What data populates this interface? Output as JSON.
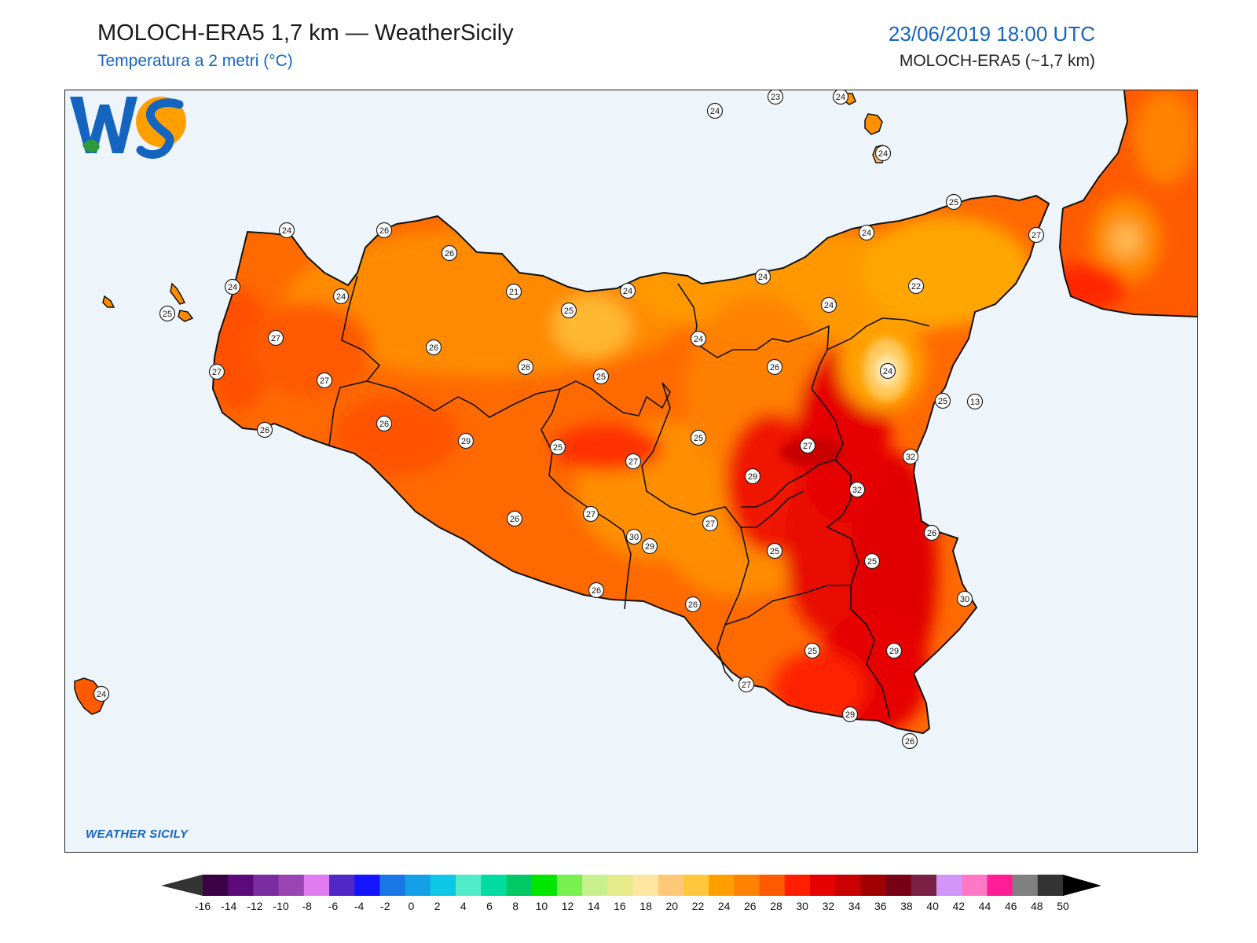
{
  "header": {
    "title": "MOLOCH-ERA5 1,7 km — WeatherSicily",
    "subtitle": "Temperatura a 2 metri (°C)",
    "datetime": "23/06/2019 18:00 UTC",
    "model": "MOLOCH-ERA5 (~1,7 km)"
  },
  "logo": {
    "text": "WS",
    "caption": "WEATHER SICILY"
  },
  "colors": {
    "sea": "#eef5fa",
    "accent": "#1565c0",
    "land_base": "#ff6a00"
  },
  "station_labels": [
    "24",
    "23",
    "24",
    "24",
    "25",
    "24",
    "24",
    "26",
    "26",
    "24",
    "24",
    "25",
    "21",
    "24",
    "25",
    "24",
    "22",
    "27",
    "24",
    "27",
    "26",
    "27",
    "24",
    "26",
    "26",
    "25",
    "24",
    "13",
    "27",
    "25",
    "25",
    "26",
    "29",
    "26",
    "25",
    "27",
    "27",
    "32",
    "32",
    "29",
    "30",
    "26",
    "27",
    "25",
    "27",
    "26",
    "25",
    "29",
    "26",
    "26",
    "30",
    "29",
    "25",
    "27",
    "29",
    "26",
    "24"
  ],
  "colorbar": {
    "ticks": [
      "-16",
      "-14",
      "-12",
      "-10",
      "-8",
      "-6",
      "-4",
      "-2",
      "0",
      "2",
      "4",
      "6",
      "8",
      "10",
      "12",
      "14",
      "16",
      "18",
      "20",
      "22",
      "24",
      "26",
      "28",
      "30",
      "32",
      "34",
      "36",
      "38",
      "40",
      "42",
      "44",
      "46",
      "48",
      "50"
    ],
    "colors": [
      "#3b0046",
      "#5c0a7a",
      "#7b2ca0",
      "#9a45b4",
      "#e07cf0",
      "#5028c8",
      "#1414ff",
      "#1a78e6",
      "#14a0e6",
      "#0cc8e6",
      "#50ebc8",
      "#00dca0",
      "#00c864",
      "#00e600",
      "#78f050",
      "#c8f08c",
      "#e6eb8c",
      "#ffe6a0",
      "#ffc878",
      "#ffc83c",
      "#ffa000",
      "#ff8200",
      "#ff5a00",
      "#ff1e00",
      "#e60000",
      "#c80000",
      "#a00000",
      "#780014",
      "#7a2045",
      "#d296fa",
      "#ff78c8",
      "#ff1e96",
      "#808080",
      "#333333"
    ]
  }
}
